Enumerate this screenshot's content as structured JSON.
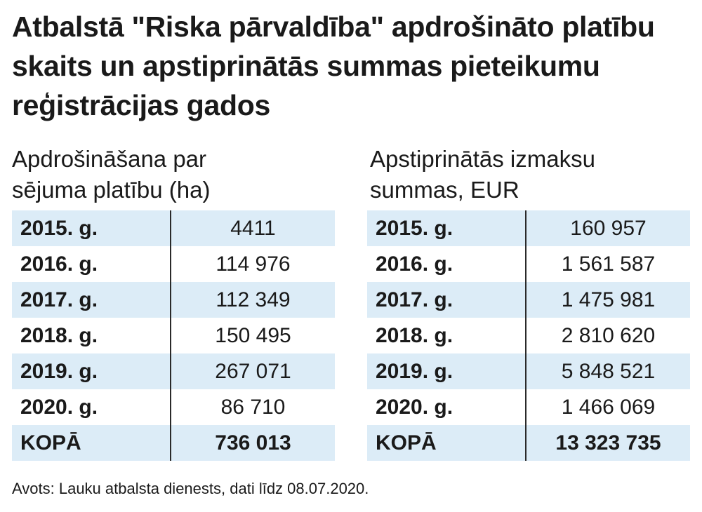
{
  "title": "Atbalstā \"Riska pārvaldība\" apdrošināto platību skaits un apstiprinātās summas pieteikumu reģistrācijas gados",
  "colors": {
    "shade": "#dcecf7",
    "text": "#1a1a1a",
    "divider": "#2a2a2a"
  },
  "chart_data": [
    {
      "type": "table",
      "heading_line1": "Apdrošināšana par",
      "heading_line2": "sējuma platību (ha)",
      "rows": [
        {
          "year": "2015. g.",
          "value": "4411"
        },
        {
          "year": "2016. g.",
          "value": "114 976"
        },
        {
          "year": "2017. g.",
          "value": "112 349"
        },
        {
          "year": "2018. g.",
          "value": "150 495"
        },
        {
          "year": "2019. g.",
          "value": "267 071"
        },
        {
          "year": "2020. g.",
          "value": "86 710"
        }
      ],
      "total_label": "KOPĀ",
      "total_value": "736 013"
    },
    {
      "type": "table",
      "heading_line1": "Apstiprinātās izmaksu",
      "heading_line2": "summas, EUR",
      "rows": [
        {
          "year": "2015. g.",
          "value": "160 957"
        },
        {
          "year": "2016. g.",
          "value": "1 561 587"
        },
        {
          "year": "2017. g.",
          "value": "1 475 981"
        },
        {
          "year": "2018. g.",
          "value": "2 810 620"
        },
        {
          "year": "2019. g.",
          "value": "5 848 521"
        },
        {
          "year": "2020. g.",
          "value": "1 466 069"
        }
      ],
      "total_label": "KOPĀ",
      "total_value": "13 323 735"
    }
  ],
  "source": "Avots: Lauku atbalsta dienests, dati līdz 08.07.2020."
}
